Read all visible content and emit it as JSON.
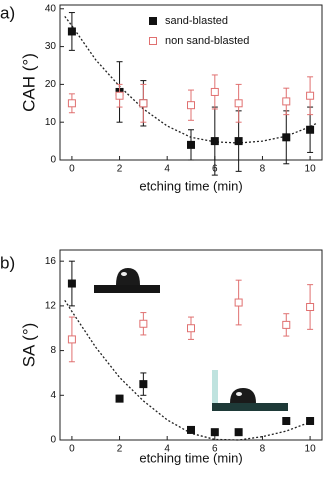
{
  "chart_data": [
    {
      "type": "scatter",
      "panel_label": "a)",
      "x_label": "etching time (min)",
      "y_label": "CAH (°)",
      "xlim": [
        -0.5,
        10.5
      ],
      "xticks": [
        0,
        2,
        4,
        6,
        8,
        10
      ],
      "ylim": [
        0,
        41
      ],
      "yticks": [
        0,
        10,
        20,
        30,
        40
      ],
      "x": [
        0,
        2,
        3,
        5,
        6,
        7,
        9,
        10
      ],
      "series": [
        {
          "name": "sand-blasted",
          "color": "#111111",
          "marker": "filled",
          "values": [
            34,
            18,
            15,
            4,
            5,
            5,
            6,
            8
          ],
          "errors": [
            5,
            8,
            6,
            4,
            9,
            8,
            7,
            6
          ]
        },
        {
          "name": "non sand-blasted",
          "color": "#e07070",
          "marker": "open",
          "values": [
            15,
            17,
            15,
            14.5,
            18,
            15,
            15.5,
            17
          ],
          "errors": [
            2.5,
            3,
            5,
            4,
            4.5,
            5,
            3.5,
            5
          ]
        }
      ],
      "fit": {
        "x": [
          -0.3,
          0,
          1,
          2,
          3,
          4,
          5,
          6,
          7,
          8,
          9,
          10,
          10.3
        ],
        "values": [
          38,
          35.5,
          26.5,
          19.5,
          13.5,
          9,
          6,
          4.8,
          4.5,
          5,
          6.3,
          8.8,
          9.8
        ]
      }
    },
    {
      "type": "scatter",
      "panel_label": "b)",
      "x_label": "etching time (min)",
      "y_label": "SA (°)",
      "xlim": [
        -0.5,
        10.5
      ],
      "xticks": [
        0,
        2,
        4,
        6,
        8,
        10
      ],
      "ylim": [
        0,
        17
      ],
      "yticks": [
        0,
        4,
        8,
        12,
        16
      ],
      "x": [
        0,
        2,
        3,
        5,
        6,
        7,
        9,
        10
      ],
      "series": [
        {
          "name": "sand-blasted",
          "color": "#111111",
          "marker": "filled",
          "values": [
            14,
            3.7,
            5,
            0.9,
            0.7,
            0.7,
            1.7,
            1.7
          ],
          "errors": [
            2,
            0.3,
            1,
            0.2,
            0.2,
            0.2,
            0.2,
            0.2
          ]
        },
        {
          "name": "non sand-blasted",
          "color": "#e07070",
          "marker": "open",
          "values": [
            9,
            10.4,
            10,
            12.3,
            10.3,
            11.9
          ],
          "x_index": [
            0,
            2,
            3,
            5,
            6,
            7
          ],
          "errors": [
            2,
            1,
            1,
            2,
            1,
            2
          ]
        }
      ],
      "fit": {
        "x": [
          -0.3,
          0,
          1,
          2,
          3,
          4,
          5,
          6,
          7,
          8,
          9,
          10
        ],
        "values": [
          12.5,
          11.5,
          8.3,
          5.6,
          3.5,
          1.8,
          0.6,
          0.05,
          0,
          0.3,
          0.8,
          1.6
        ]
      }
    }
  ]
}
